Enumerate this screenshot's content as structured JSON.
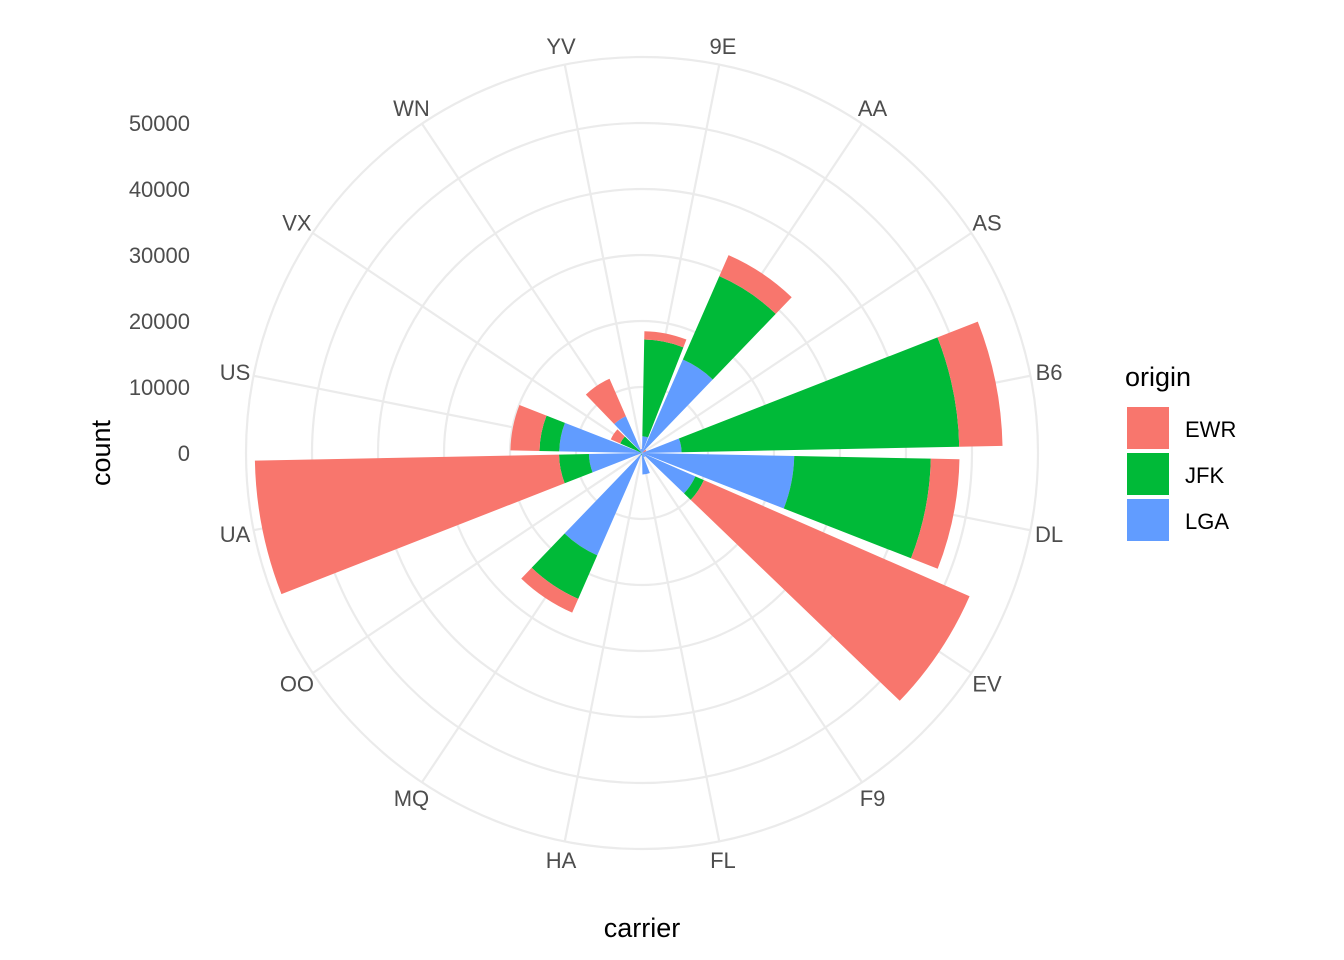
{
  "chart_data": {
    "type": "bar",
    "coord": "polar",
    "stacked": true,
    "xlabel": "carrier",
    "ylabel": "count",
    "categories": [
      "9E",
      "AA",
      "AS",
      "B6",
      "DL",
      "EV",
      "F9",
      "FL",
      "HA",
      "MQ",
      "OO",
      "UA",
      "US",
      "VX",
      "WN",
      "YV"
    ],
    "series": [
      {
        "name": "EWR",
        "values": [
          1268,
          3487,
          714,
          6557,
          4342,
          43939,
          0,
          0,
          0,
          2276,
          6,
          46087,
          4405,
          1566,
          6188,
          0
        ]
      },
      {
        "name": "JFK",
        "values": [
          14651,
          13783,
          0,
          42076,
          20701,
          1408,
          0,
          0,
          342,
          7193,
          0,
          4534,
          2995,
          3596,
          0,
          0
        ]
      },
      {
        "name": "LGA",
        "values": [
          2541,
          15459,
          0,
          6002,
          23067,
          8826,
          685,
          3260,
          0,
          16928,
          26,
          8044,
          12541,
          0,
          6087,
          601
        ]
      }
    ],
    "ylim": [
      0,
      60000
    ],
    "yticks": [
      "0",
      "10000",
      "20000",
      "30000",
      "40000",
      "50000"
    ],
    "ytick_values": [
      0,
      10000,
      20000,
      30000,
      40000,
      50000
    ],
    "grid": true,
    "legend": {
      "title": "origin",
      "position": "right"
    },
    "colors": {
      "EWR": "#F8766D",
      "JFK": "#00BA38",
      "LGA": "#619CFF",
      "grid": "#EBEBEB",
      "text": "#4D4D4D"
    }
  }
}
